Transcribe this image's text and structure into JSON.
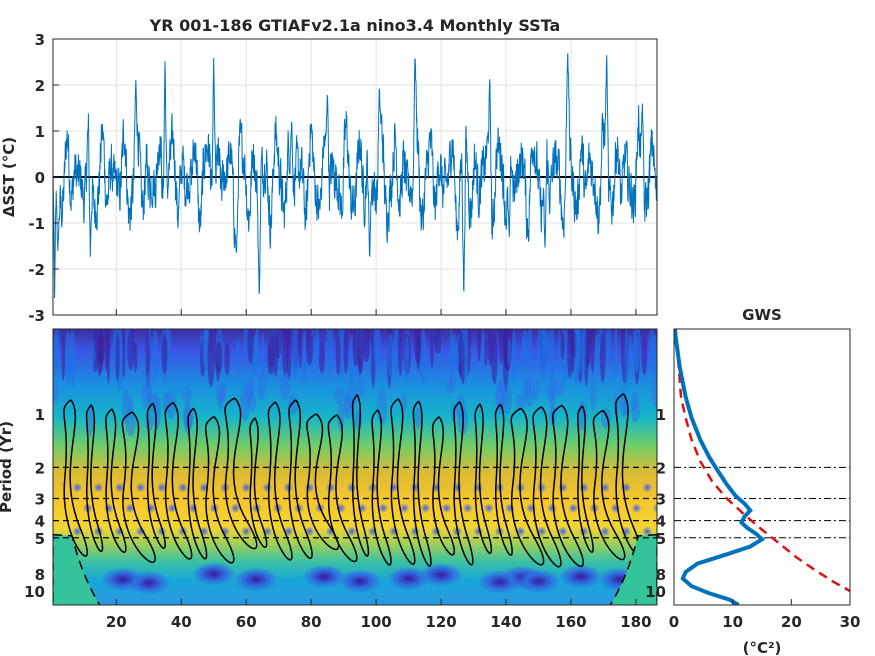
{
  "figure": {
    "title": "YR 001-186 GTIAFv2.1a nino3.4 Monthly SSTa"
  },
  "chart_data": [
    {
      "type": "line",
      "panel": "time-series",
      "title": "YR 001-186 GTIAFv2.1a nino3.4 Monthly SSTa",
      "ylabel": "ΔSST (°C)",
      "xlim": [
        0.5,
        186.5
      ],
      "ylim": [
        -3,
        3
      ],
      "xticks": [
        20,
        40,
        60,
        80,
        100,
        120,
        140,
        160,
        180
      ],
      "yticks": [
        -3,
        -2,
        -1,
        0,
        1,
        2,
        3
      ],
      "grid": true,
      "zero_line": true,
      "series": [
        {
          "color": "#0072BD",
          "x_step_years": 0.0833,
          "note_values": "approximate monthly anomalies, amplitude peaks near ±3",
          "peaks": [
            {
              "x": 1,
              "y": -3.0
            },
            {
              "x": 2,
              "y": -1.8
            },
            {
              "x": 12,
              "y": -2.0
            },
            {
              "x": 26,
              "y": 2.3
            },
            {
              "x": 35,
              "y": 3.0
            },
            {
              "x": 50,
              "y": 3.0
            },
            {
              "x": 57,
              "y": -1.8
            },
            {
              "x": 64,
              "y": -3.0
            },
            {
              "x": 74,
              "y": 1.4
            },
            {
              "x": 85,
              "y": 2.2
            },
            {
              "x": 98,
              "y": -2.0
            },
            {
              "x": 101,
              "y": 2.1
            },
            {
              "x": 112,
              "y": 3.0
            },
            {
              "x": 127,
              "y": -3.0
            },
            {
              "x": 135,
              "y": 2.4
            },
            {
              "x": 141,
              "y": -1.6
            },
            {
              "x": 152,
              "y": -1.9
            },
            {
              "x": 159,
              "y": 3.0
            },
            {
              "x": 171,
              "y": 3.0
            },
            {
              "x": 182,
              "y": 1.9
            }
          ]
        }
      ]
    },
    {
      "type": "heatmap",
      "panel": "wavelet-power",
      "ylabel": "Period (Yr)",
      "xlim": [
        0.5,
        186.5
      ],
      "ylim_period": [
        0.33,
        12
      ],
      "y_scale": "log",
      "xticks": [
        20,
        40,
        60,
        80,
        100,
        120,
        140,
        160,
        180
      ],
      "yticks": [
        1,
        2,
        3,
        4,
        5,
        8,
        10
      ],
      "reference_periods": [
        2,
        3,
        4,
        5
      ],
      "colormap": "parula",
      "features": {
        "cone_of_influence": true,
        "significance_contours": true,
        "high_power_band_period": [
          2,
          6
        ],
        "low_power_band_period": [
          7,
          12
        ]
      }
    },
    {
      "type": "line",
      "panel": "global-wavelet-spectrum",
      "title": "GWS",
      "xlabel": "(°C²)",
      "xlim": [
        0,
        30
      ],
      "xticks": [
        0,
        10,
        20,
        30
      ],
      "y_scale": "log",
      "yticks": [
        1,
        2,
        3,
        4,
        5,
        8,
        10
      ],
      "reference_periods": [
        2,
        3,
        4,
        5
      ],
      "series": [
        {
          "role": "spectrum",
          "color": "#0072BD",
          "points": [
            [
              0.1,
              0.33
            ],
            [
              1.0,
              0.55
            ],
            [
              2.0,
              0.8
            ],
            [
              3.0,
              1.05
            ],
            [
              4.5,
              1.4
            ],
            [
              6.0,
              1.75
            ],
            [
              7.5,
              2.1
            ],
            [
              9.0,
              2.5
            ],
            [
              10.5,
              2.9
            ],
            [
              12.0,
              3.2
            ],
            [
              13.0,
              3.5
            ],
            [
              12.0,
              3.8
            ],
            [
              11.5,
              4.1
            ],
            [
              12.5,
              4.4
            ],
            [
              14.0,
              4.75
            ],
            [
              15.0,
              5.1
            ],
            [
              13.0,
              5.6
            ],
            [
              9.0,
              6.2
            ],
            [
              4.0,
              7.0
            ],
            [
              2.0,
              7.8
            ],
            [
              1.5,
              8.5
            ],
            [
              3.0,
              9.4
            ],
            [
              6.0,
              10.3
            ],
            [
              9.5,
              11.2
            ],
            [
              11.0,
              12.0
            ]
          ]
        },
        {
          "role": "significance",
          "color": "#DD1111",
          "dashed": true,
          "points": [
            [
              0.3,
              0.33
            ],
            [
              1.2,
              0.8
            ],
            [
              2.0,
              1.05
            ],
            [
              3.0,
              1.4
            ],
            [
              4.5,
              1.85
            ],
            [
              6.5,
              2.4
            ],
            [
              9.0,
              3.0
            ],
            [
              12.0,
              3.7
            ],
            [
              15.0,
              4.5
            ],
            [
              18.0,
              5.4
            ],
            [
              21.0,
              6.5
            ],
            [
              24.0,
              7.6
            ],
            [
              27.0,
              8.8
            ],
            [
              30.0,
              10.0
            ]
          ]
        }
      ]
    }
  ]
}
